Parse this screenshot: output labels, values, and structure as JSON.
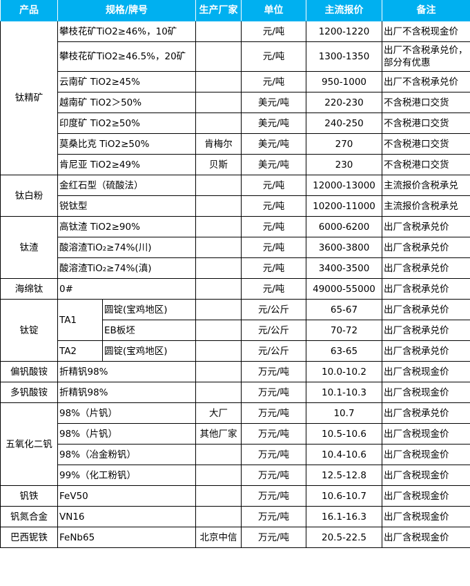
{
  "header": [
    "产品",
    "规格/牌号",
    "生产厂家",
    "单位",
    "主流报价",
    "备注"
  ],
  "header_color": "#00b0f0",
  "groups": [
    {
      "product": "钛精矿",
      "rows": [
        {
          "spec": "攀枝花矿TiO2≥46%，10矿",
          "maker": "",
          "unit": "元/吨",
          "price": "1200-1220",
          "note": "出厂不含税现金价"
        },
        {
          "spec": "攀枝花矿TiO2≥46.5%，20矿",
          "maker": "",
          "unit": "元/吨",
          "price": "1300-1350",
          "note": "出厂不含税承兑价，部分有优惠",
          "tall": true
        },
        {
          "spec": "云南矿 TiO2≥45%",
          "maker": "",
          "unit": "元/吨",
          "price": "950-1000",
          "note": "出厂不含税承兑价"
        },
        {
          "spec": "越南矿 TiO2＞50%",
          "maker": "",
          "unit": "美元/吨",
          "price": "220-230",
          "note": "不含税港口交货"
        },
        {
          "spec": "印度矿 TiO2≥50%",
          "maker": "",
          "unit": "美元/吨",
          "price": "240-250",
          "note": "不含税港口交货"
        },
        {
          "spec": "莫桑比克 TiO2≥50%",
          "maker": "肯梅尔",
          "unit": "美元/吨",
          "price": "270",
          "note": "不含税港口交货"
        },
        {
          "spec": "肯尼亚 TiO2≥49%",
          "maker": "贝斯",
          "unit": "美元/吨",
          "price": "230",
          "note": "不含税港口交货"
        }
      ]
    },
    {
      "product": "钛白粉",
      "rows": [
        {
          "spec": "金红石型（硫酸法）",
          "maker": "",
          "unit": "元/吨",
          "price": "12000-13000",
          "note": "主流报价含税承兑"
        },
        {
          "spec": "锐钛型",
          "maker": "",
          "unit": "元/吨",
          "price": "10200-11000",
          "note": "主流报价含税承兑"
        }
      ]
    },
    {
      "product": "钛渣",
      "rows": [
        {
          "spec": "高钛渣 TiO2≥90%",
          "maker": "",
          "unit": "元/吨",
          "price": "6000-6200",
          "note": "出厂含税承兑价"
        },
        {
          "spec": "酸溶渣TiO₂≥74%(川)",
          "maker": "",
          "unit": "元/吨",
          "price": "3600-3800",
          "note": "出厂含税承兑价"
        },
        {
          "spec": "酸溶渣TiO₂≥74%(滇)",
          "maker": "",
          "unit": "元/吨",
          "price": "3400-3500",
          "note": "出厂含税承兑价"
        }
      ]
    },
    {
      "product": "海绵钛",
      "rows": [
        {
          "spec": "0#",
          "maker": "",
          "unit": "元/吨",
          "price": "49000-55000",
          "note": "出厂含税承兑价"
        }
      ]
    },
    {
      "product": "钛锭",
      "rows": [
        {
          "grade": "TA1",
          "spec": "圆锭(宝鸡地区)",
          "maker": "",
          "unit": "元/公斤",
          "price": "65-67",
          "note": "出厂含税承兑价"
        },
        {
          "grade": "TA1",
          "spec": "EB板坯",
          "maker": "",
          "unit": "元/公斤",
          "price": "70-72",
          "note": "出厂含税承兑价"
        },
        {
          "grade": "TA2",
          "spec": "圆锭(宝鸡地区)",
          "maker": "",
          "unit": "元/公斤",
          "price": "63-65",
          "note": "出厂含税承兑价"
        }
      ]
    },
    {
      "product": "偏钒酸铵",
      "rows": [
        {
          "spec": "折精钒98%",
          "maker": "",
          "unit": "万元/吨",
          "price": "10.0-10.2",
          "note": "出厂含税现金价"
        }
      ]
    },
    {
      "product": "多钒酸铵",
      "rows": [
        {
          "spec": "折精钒98%",
          "maker": "",
          "unit": "万元/吨",
          "price": "10.1-10.3",
          "note": "出厂含税现金价"
        }
      ]
    },
    {
      "product": "五氧化二钒",
      "rows": [
        {
          "spec": "98%（片钒）",
          "maker": "大厂",
          "unit": "万元/吨",
          "price": "10.7",
          "note": "出厂含税承兑价"
        },
        {
          "spec": "98%（片钒）",
          "maker": "其他厂家",
          "unit": "万元/吨",
          "price": "10.5-10.6",
          "note": "出厂含税现金价"
        },
        {
          "spec": "98%（冶金粉钒）",
          "maker": "",
          "unit": "万元/吨",
          "price": "10.4-10.6",
          "note": "出厂含税现金价"
        },
        {
          "spec": "99%（化工粉钒）",
          "maker": "",
          "unit": "万元/吨",
          "price": "12.5-12.8",
          "note": "出厂含税现金价"
        }
      ]
    },
    {
      "product": "钒铁",
      "rows": [
        {
          "spec": "FeV50",
          "maker": "",
          "unit": "万元/吨",
          "price": "10.6-10.7",
          "note": "出厂含税现金价"
        }
      ]
    },
    {
      "product": "钒氮合金",
      "rows": [
        {
          "spec": "VN16",
          "maker": "",
          "unit": "万元/吨",
          "price": "16.1-16.3",
          "note": "出厂含税现金价"
        }
      ]
    },
    {
      "product": "巴西铌铁",
      "rows": [
        {
          "spec": "FeNb65",
          "maker": "北京中信",
          "unit": "万元/吨",
          "price": "20.5-22.5",
          "note": "出厂含税现金价"
        }
      ]
    }
  ]
}
